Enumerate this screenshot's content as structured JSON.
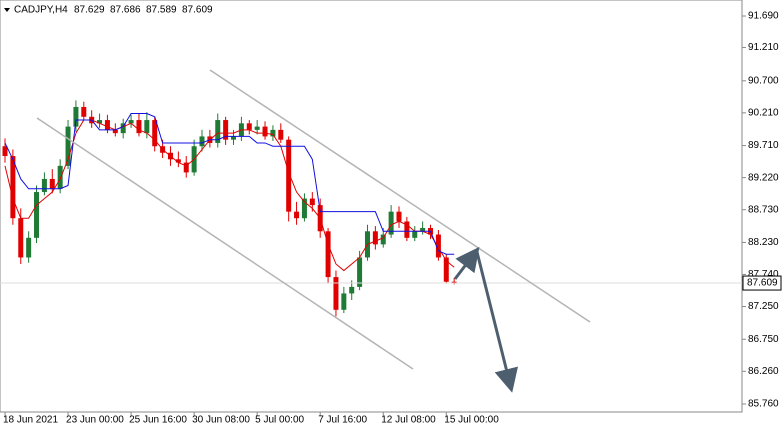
{
  "chart_data": {
    "type": "candlestick",
    "title": "CADJPY,H4",
    "x": [
      "18 Jun 2021",
      null,
      null,
      null,
      null,
      null,
      null,
      null,
      "23 Jun 00:00",
      null,
      null,
      null,
      null,
      null,
      null,
      null,
      "25 Jun 16:00",
      null,
      null,
      null,
      null,
      null,
      null,
      null,
      "30 Jun 08:00",
      null,
      null,
      null,
      null,
      null,
      null,
      null,
      "5 Jul 00:00",
      null,
      null,
      null,
      null,
      null,
      null,
      null,
      "7 Jul 16:00",
      null,
      null,
      null,
      null,
      null,
      null,
      null,
      "12 Jul 08:00",
      null,
      null,
      null,
      null,
      null,
      null,
      null,
      "15 Jul 00:00",
      null
    ],
    "open": [
      89.7,
      89.55,
      88.6,
      88.0,
      88.3,
      89.0,
      89.2,
      89.05,
      89.4,
      90.0,
      90.3,
      90.15,
      90.05,
      90.1,
      89.95,
      89.9,
      90.05,
      90.1,
      89.9,
      90.1,
      89.7,
      89.6,
      89.5,
      89.45,
      89.3,
      89.7,
      89.85,
      89.75,
      90.1,
      89.8,
      89.85,
      90.05,
      89.95,
      90.0,
      89.85,
      89.95,
      89.8,
      88.7,
      88.6,
      88.9,
      88.8,
      88.4,
      87.7,
      87.2,
      87.45,
      87.55,
      88.0,
      88.4,
      88.2,
      88.35,
      88.7,
      88.55,
      88.3,
      88.4,
      88.45,
      88.35,
      88.0,
      87.629
    ],
    "high": [
      89.82,
      89.65,
      88.75,
      88.4,
      89.1,
      89.3,
      89.35,
      89.5,
      90.1,
      90.4,
      90.38,
      90.25,
      90.2,
      90.18,
      90.05,
      90.12,
      90.18,
      90.2,
      90.22,
      90.15,
      89.8,
      89.7,
      89.62,
      89.55,
      89.8,
      89.95,
      89.95,
      90.2,
      90.15,
      89.95,
      90.15,
      90.1,
      90.1,
      90.08,
      90.02,
      90.05,
      89.85,
      88.85,
      88.98,
      89.0,
      88.9,
      88.45,
      87.8,
      87.55,
      87.65,
      88.1,
      88.5,
      88.48,
      88.45,
      88.8,
      88.78,
      88.62,
      88.48,
      88.55,
      88.5,
      88.42,
      88.05,
      87.686
    ],
    "low": [
      89.45,
      88.5,
      87.9,
      87.92,
      88.22,
      88.95,
      88.98,
      88.98,
      89.35,
      89.92,
      90.1,
      89.98,
      89.98,
      89.9,
      89.85,
      89.82,
      89.98,
      89.85,
      89.82,
      89.62,
      89.52,
      89.4,
      89.38,
      89.22,
      89.25,
      89.62,
      89.68,
      89.68,
      89.72,
      89.72,
      89.78,
      89.88,
      89.88,
      89.8,
      89.78,
      89.75,
      88.55,
      88.5,
      88.55,
      88.7,
      88.3,
      87.6,
      87.1,
      87.15,
      87.35,
      87.5,
      87.95,
      88.12,
      88.15,
      88.3,
      88.45,
      88.25,
      88.25,
      88.35,
      88.28,
      87.95,
      87.6,
      87.589
    ],
    "close": [
      89.55,
      88.6,
      88.0,
      88.3,
      89.0,
      89.2,
      89.05,
      89.4,
      90.0,
      90.3,
      90.15,
      90.05,
      90.1,
      89.95,
      89.9,
      90.05,
      90.1,
      89.9,
      90.1,
      89.7,
      89.6,
      89.5,
      89.45,
      89.3,
      89.7,
      89.85,
      89.75,
      90.1,
      89.8,
      89.85,
      90.05,
      89.95,
      90.0,
      89.85,
      89.95,
      89.8,
      88.7,
      88.6,
      88.9,
      88.8,
      88.4,
      87.7,
      87.2,
      87.45,
      87.55,
      88.0,
      88.4,
      88.2,
      88.35,
      88.7,
      88.55,
      88.3,
      88.4,
      88.45,
      88.35,
      88.0,
      87.629,
      87.609
    ],
    "up_color": "#1f7a35",
    "down_color": "#e00000",
    "series": [
      {
        "color": "#e00000",
        "values": [
          89.4,
          88.9,
          88.6,
          88.6,
          88.8,
          88.9,
          89.0,
          89.2,
          89.5,
          89.9,
          90.1,
          90.1,
          90.05,
          90.0,
          89.95,
          90.0,
          90.05,
          89.95,
          89.9,
          89.8,
          89.65,
          89.55,
          89.45,
          89.4,
          89.5,
          89.65,
          89.8,
          89.9,
          89.9,
          89.9,
          89.95,
          89.95,
          89.9,
          89.9,
          89.88,
          89.7,
          89.3,
          89.0,
          88.85,
          88.75,
          88.6,
          88.2,
          87.9,
          87.8,
          87.9,
          88.0,
          88.2,
          88.25,
          88.3,
          88.5,
          88.55,
          88.5,
          88.4,
          88.4,
          88.35,
          88.15,
          87.95,
          87.85
        ]
      },
      {
        "color": "#1010e0",
        "values": [
          89.75,
          89.5,
          89.2,
          89.05,
          89.05,
          89.05,
          89.05,
          89.05,
          89.1,
          90.1,
          90.1,
          90.1,
          89.95,
          89.95,
          89.95,
          90.0,
          90.2,
          90.2,
          90.2,
          90.15,
          89.75,
          89.75,
          89.75,
          89.75,
          89.75,
          89.75,
          89.8,
          89.8,
          89.85,
          89.85,
          89.85,
          89.85,
          89.75,
          89.75,
          89.7,
          89.7,
          89.7,
          89.7,
          89.7,
          89.5,
          88.7,
          88.7,
          88.7,
          88.7,
          88.7,
          88.7,
          88.7,
          88.7,
          88.4,
          88.4,
          88.4,
          88.4,
          88.4,
          88.4,
          88.4,
          88.1,
          88.05,
          88.05
        ]
      }
    ],
    "ylim": [
      85.638,
      91.935
    ],
    "yticks": [
      {
        "value": 91.69,
        "label": "91.690"
      },
      {
        "value": 91.21,
        "label": "91.210"
      },
      {
        "value": 90.7,
        "label": "90.700"
      },
      {
        "value": 90.21,
        "label": "90.210"
      },
      {
        "value": 89.71,
        "label": "89.710"
      },
      {
        "value": 89.22,
        "label": "89.220"
      },
      {
        "value": 88.73,
        "label": "88.730"
      },
      {
        "value": 88.23,
        "label": "88.230"
      },
      {
        "value": 87.74,
        "label": "87.740"
      },
      {
        "value": 87.25,
        "label": "87.250"
      },
      {
        "value": 86.75,
        "label": "86.750"
      },
      {
        "value": 86.26,
        "label": "86.260"
      },
      {
        "value": 85.76,
        "label": "85.760"
      }
    ]
  }
}
